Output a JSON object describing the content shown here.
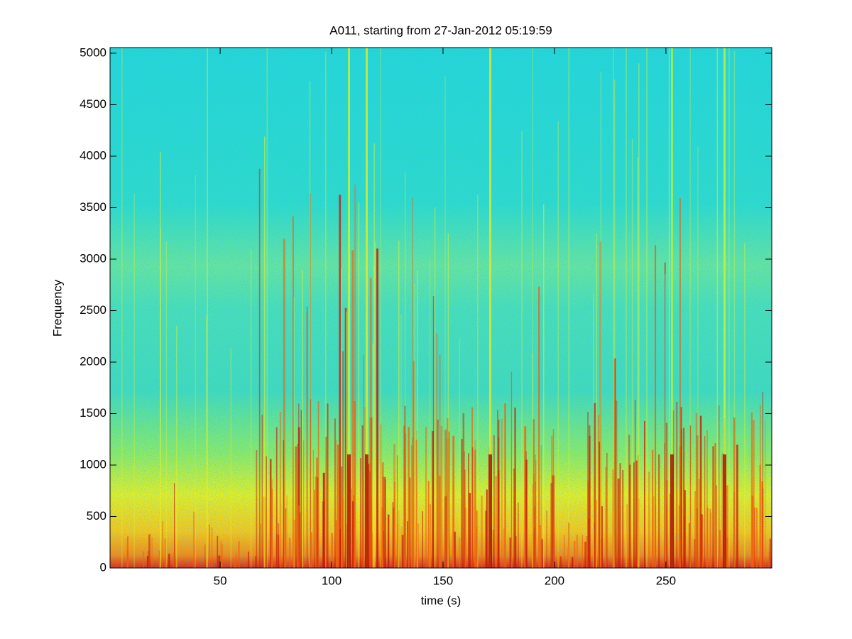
{
  "chart_data": {
    "type": "spectrogram",
    "title": "A011, starting from 27-Jan-2012 05:19:59",
    "xlabel": "time (s)",
    "ylabel": "Frequency",
    "xlim": [
      0.6,
      297.5
    ],
    "xticks": [
      50,
      100,
      150,
      200,
      250
    ],
    "ylim": [
      0,
      5055
    ],
    "yticks": [
      0,
      500,
      1000,
      1500,
      2000,
      2500,
      3000,
      3500,
      4000,
      4500,
      5000
    ]
  }
}
